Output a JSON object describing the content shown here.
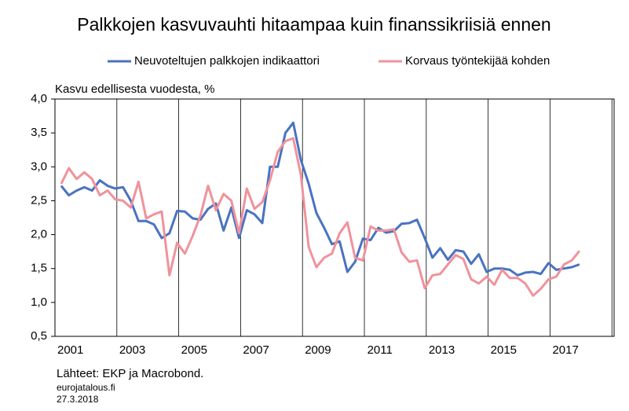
{
  "chart_data": {
    "type": "line",
    "title": "Palkkojen kasvuvauhti hitaampaa kuin finanssikriisiä ennen",
    "y_label": "Kasvu edellisesta vuodesta, %",
    "source": "Lähteet: EKP ja Macrobond.",
    "site": "eurojatalous.fi",
    "date": "27.3.2018",
    "x": [
      2001.2,
      2001.45,
      2001.7,
      2001.95,
      2002.2,
      2002.45,
      2002.7,
      2002.95,
      2003.2,
      2003.45,
      2003.7,
      2003.95,
      2004.2,
      2004.45,
      2004.7,
      2004.95,
      2005.2,
      2005.45,
      2005.7,
      2005.95,
      2006.2,
      2006.45,
      2006.7,
      2006.95,
      2007.2,
      2007.45,
      2007.7,
      2007.95,
      2008.2,
      2008.45,
      2008.7,
      2008.95,
      2009.2,
      2009.45,
      2009.7,
      2009.95,
      2010.2,
      2010.45,
      2010.7,
      2010.95,
      2011.2,
      2011.45,
      2011.7,
      2011.95,
      2012.2,
      2012.45,
      2012.7,
      2012.95,
      2013.2,
      2013.45,
      2013.7,
      2013.95,
      2014.2,
      2014.45,
      2014.7,
      2014.95,
      2015.2,
      2015.45,
      2015.7,
      2015.95,
      2016.2,
      2016.45,
      2016.7,
      2016.95,
      2017.2,
      2017.45,
      2017.7,
      2017.95
    ],
    "series": [
      {
        "name": "Neuvoteltujen palkkojen indikaattori",
        "color": "#4a72c0",
        "values": [
          2.72,
          2.58,
          2.65,
          2.7,
          2.65,
          2.8,
          2.72,
          2.68,
          2.7,
          2.5,
          2.2,
          2.2,
          2.15,
          1.95,
          2.02,
          2.35,
          2.34,
          2.24,
          2.22,
          2.38,
          2.46,
          2.06,
          2.4,
          1.95,
          2.36,
          2.3,
          2.17,
          3.0,
          3.0,
          3.5,
          3.65,
          3.1,
          2.75,
          2.32,
          2.1,
          1.86,
          1.9,
          1.45,
          1.6,
          1.94,
          1.92,
          2.1,
          2.03,
          2.05,
          2.16,
          2.17,
          2.22,
          1.95,
          1.66,
          1.8,
          1.63,
          1.77,
          1.75,
          1.57,
          1.71,
          1.45,
          1.5,
          1.5,
          1.48,
          1.4,
          1.44,
          1.45,
          1.42,
          1.58,
          1.48,
          1.5,
          1.52,
          1.56
        ]
      },
      {
        "name": "Korvaus työntekijää kohden",
        "color": "#f0929b",
        "values": [
          2.75,
          2.98,
          2.82,
          2.92,
          2.82,
          2.58,
          2.65,
          2.52,
          2.5,
          2.4,
          2.78,
          2.24,
          2.3,
          2.34,
          1.4,
          1.88,
          1.72,
          1.98,
          2.28,
          2.72,
          2.36,
          2.6,
          2.5,
          2.02,
          2.68,
          2.38,
          2.48,
          2.8,
          3.22,
          3.38,
          3.42,
          2.88,
          1.82,
          1.52,
          1.66,
          1.72,
          2.02,
          2.18,
          1.66,
          1.62,
          2.12,
          2.06,
          2.06,
          2.08,
          1.74,
          1.6,
          1.62,
          1.21,
          1.4,
          1.42,
          1.56,
          1.7,
          1.64,
          1.34,
          1.28,
          1.38,
          1.26,
          1.48,
          1.36,
          1.36,
          1.28,
          1.1,
          1.2,
          1.34,
          1.38,
          1.56,
          1.62,
          1.76
        ]
      }
    ],
    "xlim": [
      2001,
      2019.07
    ],
    "xticks": [
      {
        "value": 2001.5,
        "label": "2001"
      },
      {
        "value": 2003.5,
        "label": "2003"
      },
      {
        "value": 2005.5,
        "label": "2005"
      },
      {
        "value": 2007.5,
        "label": "2007"
      },
      {
        "value": 2009.5,
        "label": "2009"
      },
      {
        "value": 2011.5,
        "label": "2011"
      },
      {
        "value": 2013.5,
        "label": "2013"
      },
      {
        "value": 2015.5,
        "label": "2015"
      },
      {
        "value": 2017.5,
        "label": "2017"
      }
    ],
    "xgrid": [
      2003,
      2005,
      2007,
      2009,
      2011,
      2013,
      2015,
      2017,
      2019
    ],
    "ylim": [
      0.5,
      4.0
    ],
    "yticks": [
      {
        "value": 0.5,
        "label": "0,5"
      },
      {
        "value": 1.0,
        "label": "1,0"
      },
      {
        "value": 1.5,
        "label": "1,5"
      },
      {
        "value": 2.0,
        "label": "2,0"
      },
      {
        "value": 2.5,
        "label": "2,5"
      },
      {
        "value": 3.0,
        "label": "3,0"
      },
      {
        "value": 3.5,
        "label": "3,5"
      },
      {
        "value": 4.0,
        "label": "4,0"
      }
    ]
  }
}
